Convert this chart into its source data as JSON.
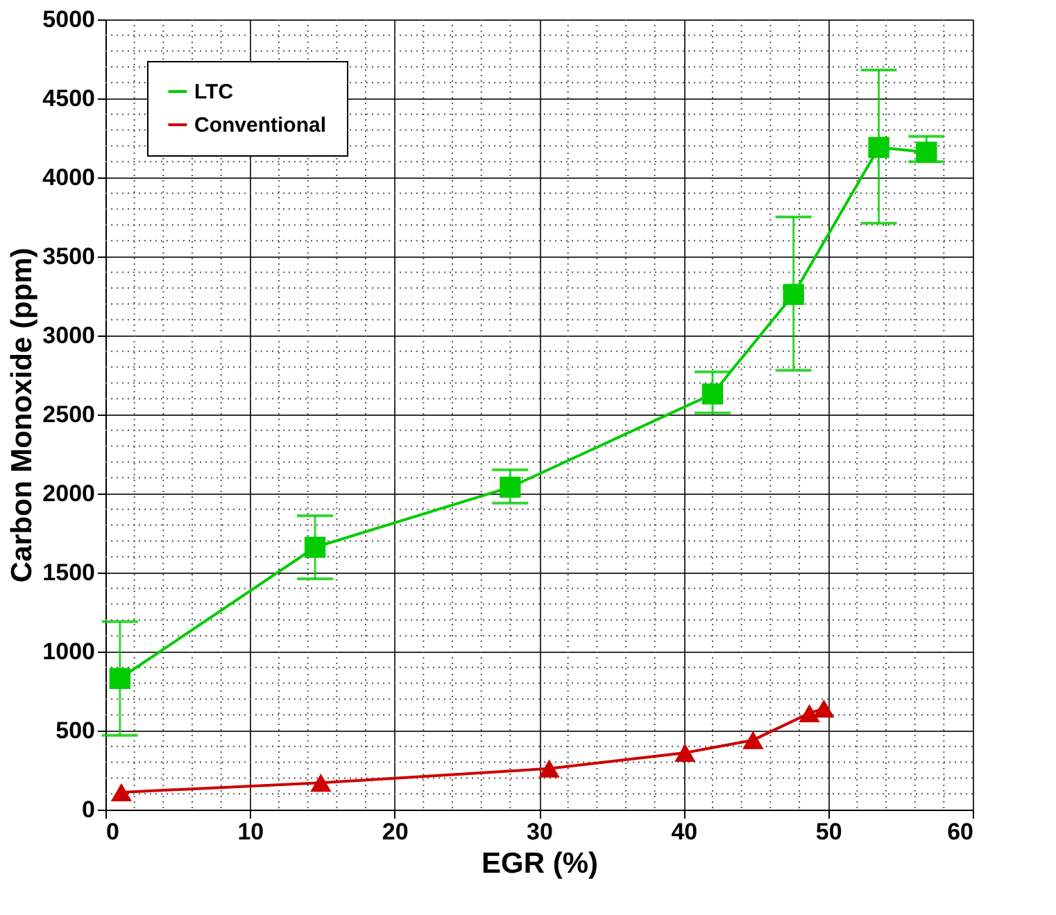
{
  "chart_data": {
    "type": "line",
    "xlabel": "EGR (%)",
    "ylabel": "Carbon Monoxide (ppm)",
    "xlim": [
      0,
      60
    ],
    "ylim": [
      0,
      5000
    ],
    "xticks": [
      0,
      10,
      20,
      30,
      40,
      50,
      60
    ],
    "yticks": [
      0,
      500,
      1000,
      1500,
      2000,
      2500,
      3000,
      3500,
      4000,
      4500,
      5000
    ],
    "grid": true,
    "legend": "top left",
    "line_style": "solid",
    "series": [
      {
        "name": "LTC",
        "color": "#00cc00",
        "marker": "square",
        "x": [
          1.0,
          14.5,
          28.0,
          42.0,
          47.6,
          53.5,
          56.8
        ],
        "values": [
          830,
          1660,
          2040,
          2630,
          3260,
          4190,
          4160
        ],
        "errors": [
          [
            470,
            1190
          ],
          [
            1460,
            1860
          ],
          [
            1940,
            2150
          ],
          [
            2510,
            2770
          ],
          [
            2780,
            3750
          ],
          [
            3710,
            4680
          ],
          [
            4100,
            4260
          ]
        ]
      },
      {
        "name": "Conventional",
        "color": "#cc0000",
        "marker": "triangle",
        "x": [
          1.1,
          14.9,
          30.7,
          40.1,
          44.8,
          48.7,
          49.7
        ],
        "values": [
          110,
          170,
          260,
          360,
          440,
          610,
          640
        ]
      }
    ]
  }
}
